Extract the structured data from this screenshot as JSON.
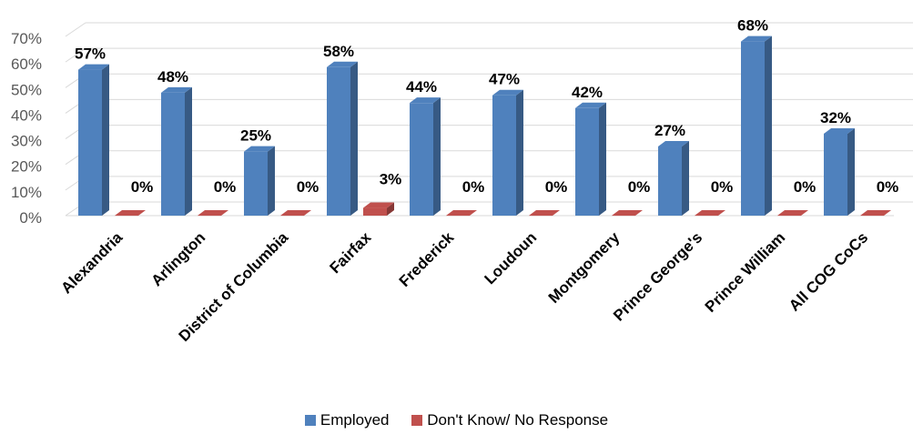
{
  "chart_data": {
    "type": "bar",
    "categories": [
      "Alexandria",
      "Arlington",
      "District of Columbia",
      "Fairfax",
      "Frederick",
      "Loudoun",
      "Montgomery",
      "Prince George's",
      "Prince William",
      "All COG CoCs"
    ],
    "series": [
      {
        "name": "Employed",
        "values": [
          57,
          48,
          25,
          58,
          44,
          47,
          42,
          27,
          68,
          32
        ],
        "color": "#4F81BD"
      },
      {
        "name": "Don't Know/ No Response",
        "values": [
          0,
          0,
          0,
          3,
          0,
          0,
          0,
          0,
          0,
          0
        ],
        "color": "#C0504D"
      }
    ],
    "data_labels": [
      [
        "57%",
        "48%",
        "25%",
        "58%",
        "44%",
        "47%",
        "42%",
        "27%",
        "68%",
        "32%"
      ],
      [
        "0%",
        "0%",
        "0%",
        "3%",
        "0%",
        "0%",
        "0%",
        "0%",
        "0%",
        "0%"
      ]
    ],
    "y_ticks": [
      "0%",
      "10%",
      "20%",
      "30%",
      "40%",
      "50%",
      "60%",
      "70%"
    ],
    "ylim": [
      0,
      70
    ],
    "title": "",
    "xlabel": "",
    "ylabel": "",
    "grid": true,
    "legend_position": "bottom",
    "three_d": true
  },
  "legend": {
    "employed_label": "Employed",
    "dk_label": "Don't Know/ No Response"
  }
}
